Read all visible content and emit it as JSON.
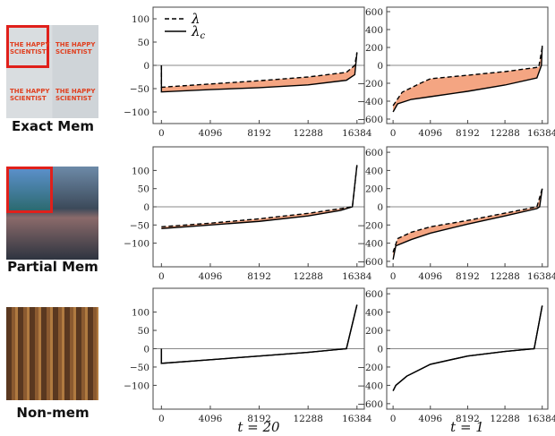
{
  "rows": [
    {
      "label": "Exact Mem",
      "image_caption": "THE HAPPY SCIENTIST"
    },
    {
      "label": "Partial Mem"
    },
    {
      "label": "Non-mem"
    }
  ],
  "columns": [
    {
      "xlabel": "t = 20"
    },
    {
      "xlabel": "t = 1"
    }
  ],
  "colors": {
    "fill": "#f4a582",
    "line": "#000000",
    "highlight_box": "#e0201b"
  },
  "legend": {
    "entries": [
      {
        "label": "λ",
        "style": "dashed"
      },
      {
        "label": "λ_c",
        "style": "solid"
      }
    ],
    "placement": "top-left"
  },
  "chart_data": [
    {
      "type": "line",
      "row": 0,
      "col": 0,
      "xticks": [
        0,
        4096,
        8192,
        12288,
        16384
      ],
      "yticks": [
        -100,
        -50,
        0,
        50,
        100
      ],
      "ylim": [
        -125,
        125
      ],
      "xlim": [
        -700,
        17000
      ],
      "fill_between": true,
      "series": [
        {
          "name": "λ",
          "x": [
            0,
            0,
            4096,
            8192,
            12288,
            15500,
            16200,
            16384
          ],
          "y": [
            0,
            -47,
            -40,
            -33,
            -25,
            -15,
            0,
            28
          ]
        },
        {
          "name": "λ_c",
          "x": [
            0,
            0,
            4096,
            8192,
            12288,
            15500,
            16200,
            16384
          ],
          "y": [
            0,
            -57,
            -52,
            -48,
            -42,
            -32,
            -20,
            28
          ]
        }
      ]
    },
    {
      "type": "line",
      "row": 0,
      "col": 1,
      "xticks": [
        0,
        4096,
        8192,
        12288,
        16384
      ],
      "yticks": [
        -600,
        -400,
        -200,
        0,
        200,
        400,
        600
      ],
      "ylim": [
        -650,
        650
      ],
      "xlim": [
        -700,
        17000
      ],
      "fill_between": true,
      "series": [
        {
          "name": "λ",
          "x": [
            0,
            1000,
            3000,
            4096,
            8192,
            12288,
            16000,
            16384
          ],
          "y": [
            -450,
            -300,
            -200,
            -150,
            -110,
            -70,
            -20,
            200
          ]
        },
        {
          "name": "λ_c",
          "x": [
            0,
            500,
            2000,
            4096,
            8192,
            12288,
            15800,
            16300,
            16384
          ],
          "y": [
            -520,
            -430,
            -380,
            -350,
            -290,
            -220,
            -140,
            0,
            220
          ]
        }
      ]
    },
    {
      "type": "line",
      "row": 1,
      "col": 0,
      "xticks": [
        0,
        4096,
        8192,
        12288,
        16384
      ],
      "yticks": [
        -100,
        -50,
        0,
        50,
        100
      ],
      "ylim": [
        -165,
        165
      ],
      "xlim": [
        -700,
        17000
      ],
      "fill_between": true,
      "series": [
        {
          "name": "λ",
          "x": [
            0,
            4096,
            8192,
            12288,
            15000,
            16000,
            16384
          ],
          "y": [
            -55,
            -45,
            -33,
            -18,
            -5,
            0,
            115
          ]
        },
        {
          "name": "λ_c",
          "x": [
            0,
            4096,
            8192,
            12288,
            15000,
            16000,
            16384
          ],
          "y": [
            -60,
            -50,
            -40,
            -25,
            -10,
            0,
            115
          ]
        }
      ]
    },
    {
      "type": "line",
      "row": 1,
      "col": 1,
      "xticks": [
        0,
        4096,
        8192,
        12288,
        16384
      ],
      "yticks": [
        -600,
        -400,
        -200,
        0,
        200,
        400,
        600
      ],
      "ylim": [
        -660,
        660
      ],
      "xlim": [
        -700,
        17000
      ],
      "fill_between": true,
      "series": [
        {
          "name": "λ",
          "x": [
            0,
            500,
            2000,
            4096,
            8192,
            12288,
            15800,
            16384
          ],
          "y": [
            -500,
            -350,
            -280,
            -220,
            -150,
            -70,
            0,
            200
          ]
        },
        {
          "name": "λ_c",
          "x": [
            0,
            300,
            2000,
            4096,
            8192,
            12288,
            15800,
            16100,
            16384
          ],
          "y": [
            -580,
            -430,
            -360,
            -290,
            -190,
            -100,
            -20,
            0,
            200
          ]
        }
      ]
    },
    {
      "type": "line",
      "row": 2,
      "col": 0,
      "xticks": [
        0,
        4096,
        8192,
        12288,
        16384
      ],
      "yticks": [
        -100,
        -50,
        0,
        50,
        100
      ],
      "ylim": [
        -165,
        165
      ],
      "xlim": [
        -700,
        17000
      ],
      "fill_between": false,
      "series": [
        {
          "name": "λ",
          "x": [
            0,
            0,
            4096,
            8192,
            12288,
            15500,
            16384
          ],
          "y": [
            0,
            -40,
            -30,
            -20,
            -10,
            0,
            120
          ]
        },
        {
          "name": "λ_c",
          "x": [
            0,
            0,
            4096,
            8192,
            12288,
            15500,
            16384
          ],
          "y": [
            0,
            -40,
            -30,
            -20,
            -10,
            0,
            120
          ]
        }
      ]
    },
    {
      "type": "line",
      "row": 2,
      "col": 1,
      "xticks": [
        0,
        4096,
        8192,
        12288,
        16384
      ],
      "yticks": [
        -600,
        -400,
        -200,
        0,
        200,
        400,
        600
      ],
      "ylim": [
        -660,
        660
      ],
      "xlim": [
        -700,
        17000
      ],
      "fill_between": false,
      "series": [
        {
          "name": "λ",
          "x": [
            0,
            300,
            1500,
            4096,
            8192,
            12288,
            15500,
            16384
          ],
          "y": [
            -460,
            -400,
            -300,
            -170,
            -80,
            -30,
            0,
            470
          ]
        },
        {
          "name": "λ_c",
          "x": [
            0,
            300,
            1500,
            4096,
            8192,
            12288,
            15500,
            16384
          ],
          "y": [
            -460,
            -400,
            -300,
            -170,
            -80,
            -30,
            0,
            470
          ]
        }
      ]
    }
  ]
}
